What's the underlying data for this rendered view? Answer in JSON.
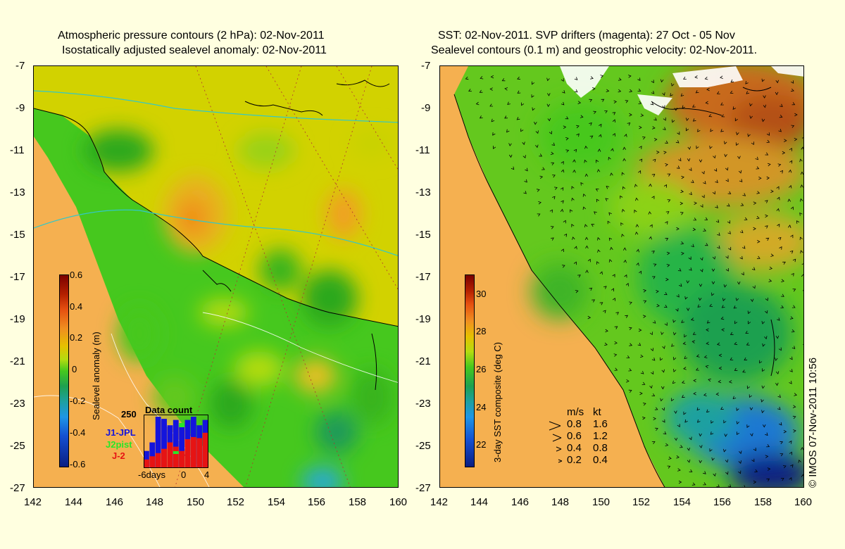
{
  "left_panel": {
    "title_line1": "Atmospheric pressure contours (2 hPa): 02-Nov-2011",
    "title_line2": "Isostatically adjusted sealevel anomaly: 02-Nov-2011",
    "y_ticks": [
      "-7",
      "-9",
      "-11",
      "-13",
      "-15",
      "-17",
      "-19",
      "-21",
      "-23",
      "-25",
      "-27"
    ],
    "x_ticks": [
      "142",
      "144",
      "146",
      "148",
      "150",
      "152",
      "154",
      "156",
      "158",
      "160"
    ],
    "colorbar": {
      "label": "Sealevel anomaly (m)",
      "ticks": [
        "0.6",
        "0.4",
        "0.2",
        "0",
        "-0.2",
        "-0.4",
        "-0.6"
      ],
      "range": [
        -0.6,
        0.6
      ]
    },
    "data_count": {
      "title": "Data count",
      "y_max_label": "250",
      "x_labels": [
        "-6days",
        "0",
        "4"
      ],
      "legend": [
        {
          "label": "J1-JPL",
          "color": "#1414dc"
        },
        {
          "label": "J2pist",
          "color": "#28e628"
        },
        {
          "label": "J-2",
          "color": "#e61414"
        }
      ],
      "red_values": [
        40,
        55,
        70,
        90,
        120,
        100,
        80,
        135,
        145,
        140,
        165
      ],
      "blue_values": [
        80,
        120,
        240,
        230,
        200,
        225,
        200,
        225,
        240,
        200,
        225
      ],
      "y_max": 250
    }
  },
  "right_panel": {
    "title_line1": "SST: 02-Nov-2011. SVP drifters (magenta): 27 Oct - 05 Nov",
    "title_line2": "Sealevel contours (0.1 m) and geostrophic velocity: 02-Nov-2011.",
    "y_ticks": [
      "-7",
      "-9",
      "-11",
      "-13",
      "-15",
      "-17",
      "-19",
      "-21",
      "-23",
      "-25",
      "-27"
    ],
    "x_ticks": [
      "142",
      "144",
      "146",
      "148",
      "150",
      "152",
      "154",
      "156",
      "158",
      "160"
    ],
    "colorbar": {
      "label": "3-day SST composite (deg C)",
      "ticks": [
        "30",
        "28",
        "26",
        "24",
        "22"
      ],
      "range": [
        21,
        31
      ]
    },
    "velocity_legend": {
      "header_ms": "m/s",
      "header_kt": "kt",
      "rows": [
        {
          "ms": "0.8",
          "kt": "1.6"
        },
        {
          "ms": "0.6",
          "kt": "1.2"
        },
        {
          "ms": "0.4",
          "kt": "0.8"
        },
        {
          "ms": "0.2",
          "kt": "0.4"
        }
      ]
    }
  },
  "credit": "© IMOS 07-Nov-2011 10:56",
  "colors": {
    "background": "#ffffe0",
    "land": "#f5b050"
  }
}
